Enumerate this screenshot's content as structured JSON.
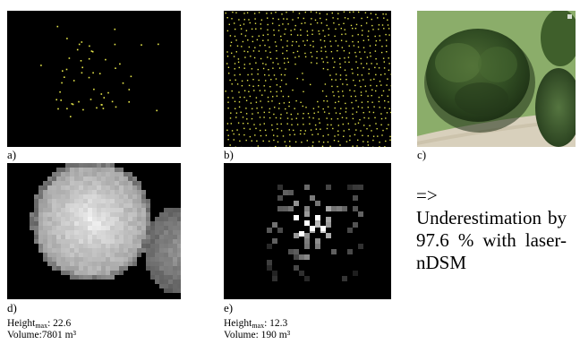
{
  "panels": {
    "a": {
      "label": "a)"
    },
    "b": {
      "label": "b)"
    },
    "c": {
      "label": "c)"
    },
    "d": {
      "label": "d)"
    },
    "e": {
      "label": "e)"
    }
  },
  "stats_d": {
    "height_label": "Height",
    "height_sub": "max",
    "height_value": ": 22.6",
    "volume_text": "Volume:7801 m³"
  },
  "stats_e": {
    "height_label": "Height",
    "height_sub": "max",
    "height_value": ": 12.3",
    "volume_text": "Volume: 190 m³"
  },
  "conclusion": {
    "arrow": "=>",
    "text": "Underestimation by 97.6 % with laser-nDSM"
  },
  "colors": {
    "panel_background": "#000000",
    "laser_point": "#e6e64a",
    "grass": "#8cae6a",
    "tree_crown": "#2f4a22",
    "path": "#d9d2bf"
  }
}
